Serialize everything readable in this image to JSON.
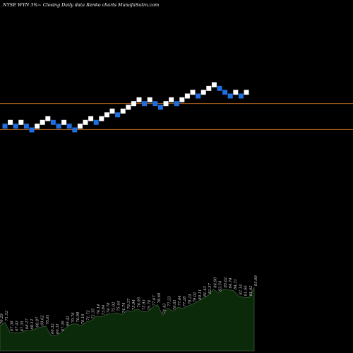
{
  "chart_data": {
    "type": "renko",
    "title": "NYSE WYN  3%~  Closing Daily data  Renko  charts MunafaSutra.com",
    "colors": {
      "background": "#000000",
      "up_brick": "#ffffff",
      "down_brick": "#1f6fe0",
      "reference_line": "#b5651d",
      "volume_fill": "#0a2a0a",
      "volume_stroke": "#3a5a3a",
      "label_text": "#cfcfcf",
      "title_text": "#ffffff"
    },
    "price_axis": {
      "min": 48,
      "max": 90
    },
    "reference_lines": [
      {
        "value": 71.0
      },
      {
        "value": 65.5
      }
    ],
    "bricks": [
      {
        "dir": "down",
        "price": 66.2
      },
      {
        "dir": "up",
        "price": 67.0
      },
      {
        "dir": "down",
        "price": 66.2
      },
      {
        "dir": "up",
        "price": 67.0
      },
      {
        "dir": "down",
        "price": 66.2
      },
      {
        "dir": "down",
        "price": 65.4
      },
      {
        "dir": "up",
        "price": 66.2
      },
      {
        "dir": "up",
        "price": 67.0
      },
      {
        "dir": "up",
        "price": 67.8
      },
      {
        "dir": "down",
        "price": 67.0
      },
      {
        "dir": "down",
        "price": 66.2
      },
      {
        "dir": "up",
        "price": 67.0
      },
      {
        "dir": "down",
        "price": 66.2
      },
      {
        "dir": "down",
        "price": 65.4
      },
      {
        "dir": "up",
        "price": 66.2
      },
      {
        "dir": "up",
        "price": 67.0
      },
      {
        "dir": "up",
        "price": 67.8
      },
      {
        "dir": "down",
        "price": 67.0
      },
      {
        "dir": "up",
        "price": 67.8
      },
      {
        "dir": "up",
        "price": 68.6
      },
      {
        "dir": "up",
        "price": 69.4
      },
      {
        "dir": "down",
        "price": 68.6
      },
      {
        "dir": "up",
        "price": 69.4
      },
      {
        "dir": "up",
        "price": 70.2
      },
      {
        "dir": "up",
        "price": 71.0
      },
      {
        "dir": "up",
        "price": 71.8
      },
      {
        "dir": "down",
        "price": 71.0
      },
      {
        "dir": "up",
        "price": 71.8
      },
      {
        "dir": "down",
        "price": 71.0
      },
      {
        "dir": "down",
        "price": 70.2
      },
      {
        "dir": "up",
        "price": 71.0
      },
      {
        "dir": "up",
        "price": 71.8
      },
      {
        "dir": "down",
        "price": 71.0
      },
      {
        "dir": "up",
        "price": 71.8
      },
      {
        "dir": "up",
        "price": 72.6
      },
      {
        "dir": "up",
        "price": 73.4
      },
      {
        "dir": "down",
        "price": 72.6
      },
      {
        "dir": "up",
        "price": 73.4
      },
      {
        "dir": "up",
        "price": 74.2
      },
      {
        "dir": "up",
        "price": 75.0
      },
      {
        "dir": "down",
        "price": 74.2
      },
      {
        "dir": "down",
        "price": 73.4
      },
      {
        "dir": "down",
        "price": 72.6
      },
      {
        "dir": "up",
        "price": 73.4
      },
      {
        "dir": "down",
        "price": 72.6
      },
      {
        "dir": "up",
        "price": 73.4
      }
    ],
    "volume_labels": [
      "70.29",
      "71.52",
      "67.38",
      "67.43",
      "67.35",
      "68.27",
      "68.12",
      "68.97",
      "69.62",
      "70.01",
      "66.32",
      "66.31",
      "67.36",
      "69.42",
      "70.76",
      "70.98",
      "70.16",
      "71.72",
      "72.35",
      "74.14",
      "73.84",
      "74.78",
      "75.02",
      "75.44",
      "74.74",
      "76.37",
      "75.94",
      "76.95",
      "75.93",
      "75.76",
      "77.67",
      "78.68",
      "74.43",
      "77.33",
      "76.01",
      "77.64",
      "77.28",
      "78.24",
      "79.02",
      "80.11",
      "81.43",
      "82.57",
      "84.96",
      "83.54",
      "85.02",
      "84.74",
      "84.31",
      "82.14",
      "81.66",
      "81.62",
      "85.69"
    ],
    "volume_values": [
      70.29,
      71.52,
      67.38,
      67.43,
      67.35,
      68.27,
      68.12,
      68.97,
      69.62,
      70.01,
      66.32,
      66.31,
      67.36,
      69.42,
      70.76,
      70.98,
      70.16,
      71.72,
      72.35,
      74.14,
      73.84,
      74.78,
      75.02,
      75.44,
      74.74,
      76.37,
      75.94,
      76.95,
      75.93,
      75.76,
      77.67,
      78.68,
      74.43,
      77.33,
      76.01,
      77.64,
      77.28,
      78.24,
      79.02,
      80.11,
      81.43,
      82.57,
      84.96,
      83.54,
      85.02,
      84.74,
      84.31,
      82.14,
      81.66,
      81.62,
      85.69
    ]
  }
}
